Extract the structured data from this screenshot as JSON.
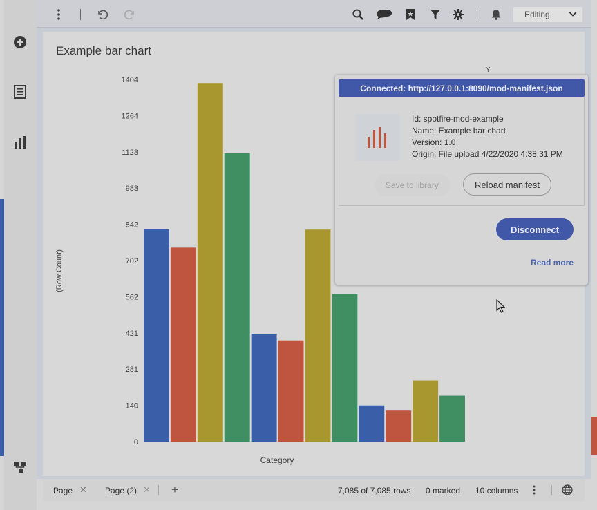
{
  "toolbar": {
    "mode_label": "Editing",
    "icons": [
      "more-vertical-icon",
      "undo-icon",
      "redo-icon",
      "search-icon",
      "chat-icon",
      "bookmark-icon",
      "filter-icon",
      "gear-icon",
      "bell-icon",
      "chevron-down-icon"
    ]
  },
  "sidebar": {
    "icons": [
      "add-icon",
      "data-table-icon",
      "bar-chart-icon",
      "data-canvas-icon"
    ]
  },
  "visualization": {
    "title": "Example bar chart"
  },
  "chart_data": {
    "type": "bar",
    "ylabel": "(Row Count)",
    "xlabel": "Category",
    "ylim": [
      0,
      1404
    ],
    "yticks": [
      "0",
      "140",
      "281",
      "421",
      "562",
      "702",
      "842",
      "983",
      "1123",
      "1264",
      "1404"
    ],
    "values": [
      823,
      752,
      1390,
      1118,
      418,
      392,
      822,
      572,
      140,
      120,
      237,
      178
    ],
    "colors": [
      "#3a5ea8",
      "#c0553f",
      "#a8962f",
      "#3f8f63",
      "#3a5ea8",
      "#c0553f",
      "#a8962f",
      "#3f8f63",
      "#3a5ea8",
      "#c0553f",
      "#a8962f",
      "#3f8f63"
    ],
    "grid": false
  },
  "popover": {
    "header": "Connected: http://127.0.0.1:8090/mod-manifest.json",
    "id_line": "Id: spotfire-mod-example",
    "name_line": "Name: Example bar chart",
    "version_line": "Version: 1.0",
    "origin_line": "Origin: File upload 4/22/2020 4:38:31 PM",
    "save_label": "Save to library",
    "reload_label": "Reload manifest",
    "disconnect_label": "Disconnect",
    "read_more_label": "Read more",
    "axis_hint": "Y:"
  },
  "statusbar": {
    "tabs": [
      {
        "label": "Page"
      },
      {
        "label": "Page (2)"
      }
    ],
    "add_label": "+",
    "rows": "7,085 of 7,085 rows",
    "marked": "0 marked",
    "columns": "10 columns"
  },
  "colors": {
    "accent": "#4157a8",
    "bar_blue": "#3a5ea8",
    "bar_red": "#c0553f",
    "bar_yellow": "#a8962f",
    "bar_green": "#3f8f63"
  }
}
